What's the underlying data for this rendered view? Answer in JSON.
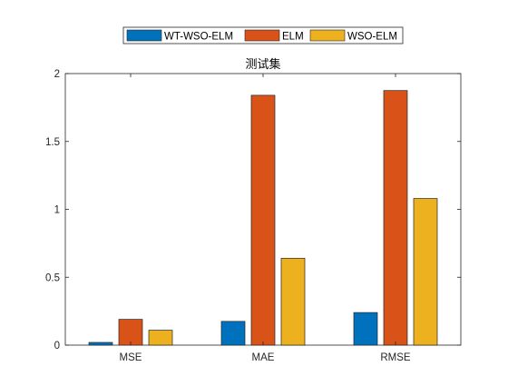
{
  "chart_data": {
    "type": "bar",
    "title": "测试集",
    "xlabel": "",
    "ylabel": "",
    "categories": [
      "MSE",
      "MAE",
      "RMSE"
    ],
    "series": [
      {
        "name": "WT-WSO-ELM",
        "color": "#0072BD",
        "values": [
          0.02,
          0.175,
          0.24
        ]
      },
      {
        "name": "ELM",
        "color": "#D95319",
        "values": [
          0.19,
          1.84,
          1.875
        ]
      },
      {
        "name": "WSO-ELM",
        "color": "#EDB120",
        "values": [
          0.11,
          0.64,
          1.08
        ]
      }
    ],
    "ylim": [
      0,
      2
    ],
    "yticks": [
      0,
      0.5,
      1,
      1.5,
      2
    ],
    "ytick_labels": [
      "0",
      "0.5",
      "1",
      "1.5",
      "2"
    ],
    "grid": false,
    "legend_position": "top-center-outside",
    "legend_orientation": "horizontal"
  }
}
